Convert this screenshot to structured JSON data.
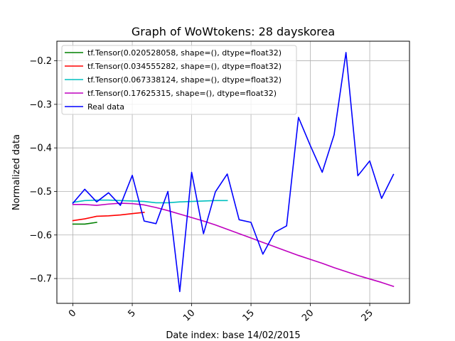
{
  "chart_data": {
    "type": "line",
    "title": "Graph of WoWtokens: 28 dayskorea",
    "xlabel": "Date index: base 14/02/2015",
    "ylabel": "Normalized data",
    "xlim": [
      -1.35,
      28.35
    ],
    "ylim": [
      -0.757,
      -0.155
    ],
    "xticks": [
      0,
      5,
      10,
      15,
      20,
      25
    ],
    "xtick_labels": [
      "0",
      "5",
      "10",
      "15",
      "20",
      "25"
    ],
    "yticks": [
      -0.7,
      -0.6,
      -0.5,
      -0.4,
      -0.3,
      -0.2
    ],
    "ytick_labels": [
      "−0.7",
      "−0.6",
      "−0.5",
      "−0.4",
      "−0.3",
      "−0.2"
    ],
    "grid": true,
    "legend_position": "top-left",
    "series": [
      {
        "name": "tf.Tensor(0.020528058, shape=(), dtype=float32)",
        "color": "#008000",
        "x": [
          0,
          1,
          2
        ],
        "y": [
          -0.575,
          -0.575,
          -0.571
        ]
      },
      {
        "name": "tf.Tensor(0.034555282, shape=(), dtype=float32)",
        "color": "#ff0000",
        "x": [
          0,
          1,
          2,
          3,
          4,
          5,
          6
        ],
        "y": [
          -0.567,
          -0.563,
          -0.557,
          -0.556,
          -0.554,
          -0.551,
          -0.548
        ]
      },
      {
        "name": "tf.Tensor(0.067338124, shape=(), dtype=float32)",
        "color": "#00bfbf",
        "x": [
          0,
          1,
          2,
          3,
          4,
          5,
          6,
          7,
          8,
          9,
          10,
          11,
          12,
          13
        ],
        "y": [
          -0.525,
          -0.521,
          -0.52,
          -0.52,
          -0.521,
          -0.522,
          -0.523,
          -0.526,
          -0.526,
          -0.524,
          -0.523,
          -0.522,
          -0.521,
          -0.521
        ]
      },
      {
        "name": "tf.Tensor(0.17625315, shape=(), dtype=float32)",
        "color": "#bf00bf",
        "x": [
          0,
          1,
          2,
          3,
          4,
          5,
          6,
          7,
          8,
          9,
          10,
          11,
          12,
          13,
          14,
          15,
          16,
          17,
          18,
          19,
          20,
          21,
          22,
          23,
          24,
          25,
          26,
          27
        ],
        "y": [
          -0.53,
          -0.53,
          -0.532,
          -0.529,
          -0.527,
          -0.528,
          -0.531,
          -0.537,
          -0.544,
          -0.552,
          -0.56,
          -0.568,
          -0.577,
          -0.587,
          -0.597,
          -0.607,
          -0.617,
          -0.627,
          -0.637,
          -0.647,
          -0.656,
          -0.665,
          -0.675,
          -0.684,
          -0.693,
          -0.701,
          -0.709,
          -0.718
        ]
      },
      {
        "name": "Real data",
        "color": "#0000ff",
        "x": [
          0,
          1,
          2,
          3,
          4,
          5,
          6,
          7,
          8,
          9,
          10,
          11,
          12,
          13,
          14,
          15,
          16,
          17,
          18,
          19,
          20,
          21,
          22,
          23,
          24,
          25,
          26,
          27
        ],
        "y": [
          -0.527,
          -0.495,
          -0.524,
          -0.503,
          -0.532,
          -0.463,
          -0.568,
          -0.574,
          -0.5,
          -0.73,
          -0.456,
          -0.597,
          -0.501,
          -0.46,
          -0.565,
          -0.571,
          -0.644,
          -0.594,
          -0.579,
          -0.33,
          -0.395,
          -0.456,
          -0.37,
          -0.181,
          -0.464,
          -0.43,
          -0.516,
          -0.461
        ]
      }
    ]
  }
}
